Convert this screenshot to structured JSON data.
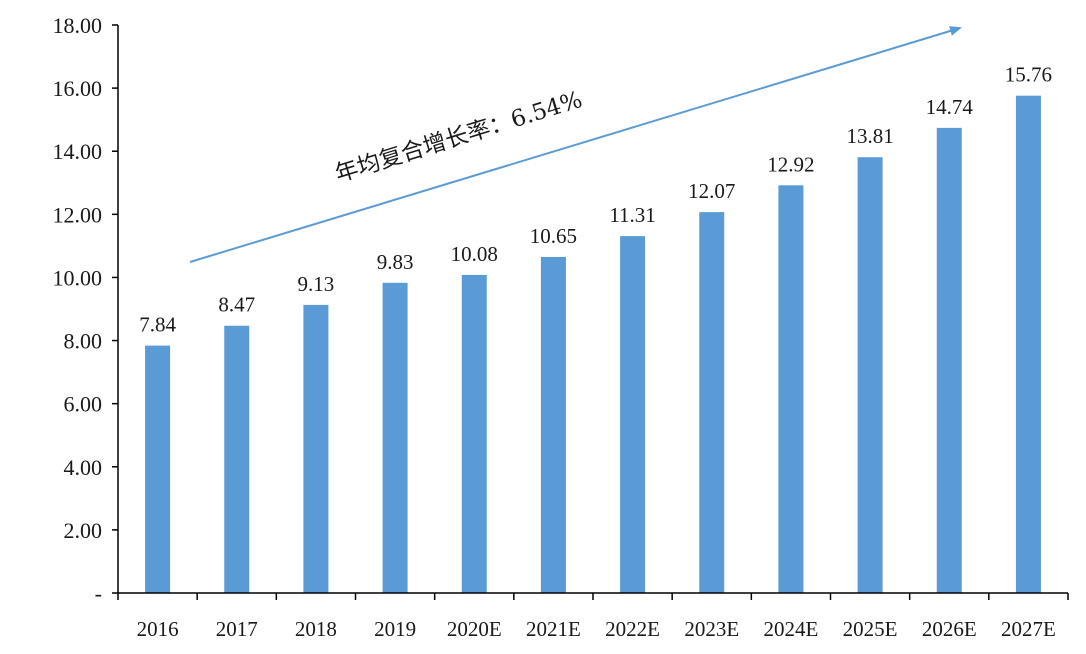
{
  "chart_data": {
    "type": "bar",
    "categories": [
      "2016",
      "2017",
      "2018",
      "2019",
      "2020E",
      "2021E",
      "2022E",
      "2023E",
      "2024E",
      "2025E",
      "2026E",
      "2027E"
    ],
    "values": [
      7.84,
      8.47,
      9.13,
      9.83,
      10.08,
      10.65,
      11.31,
      12.07,
      12.92,
      13.81,
      14.74,
      15.76
    ],
    "value_labels": [
      "7.84",
      "8.47",
      "9.13",
      "9.83",
      "10.08",
      "10.65",
      "11.31",
      "12.07",
      "12.92",
      "13.81",
      "14.74",
      "15.76"
    ],
    "ylim": [
      0,
      18
    ],
    "y_ticks": [
      0,
      2,
      4,
      6,
      8,
      10,
      12,
      14,
      16,
      18
    ],
    "y_tick_labels": [
      "-",
      "2.00",
      "4.00",
      "6.00",
      "8.00",
      "10.00",
      "12.00",
      "14.00",
      "16.00",
      "18.00"
    ],
    "title": "",
    "xlabel": "",
    "ylabel": "",
    "grid": false,
    "annotation": "年均复合增长率：6.54%",
    "colors": {
      "bar": "#5b9bd5",
      "arrow": "#5b9bd5",
      "axis": "#000000",
      "text": "#1a1a1a"
    }
  }
}
